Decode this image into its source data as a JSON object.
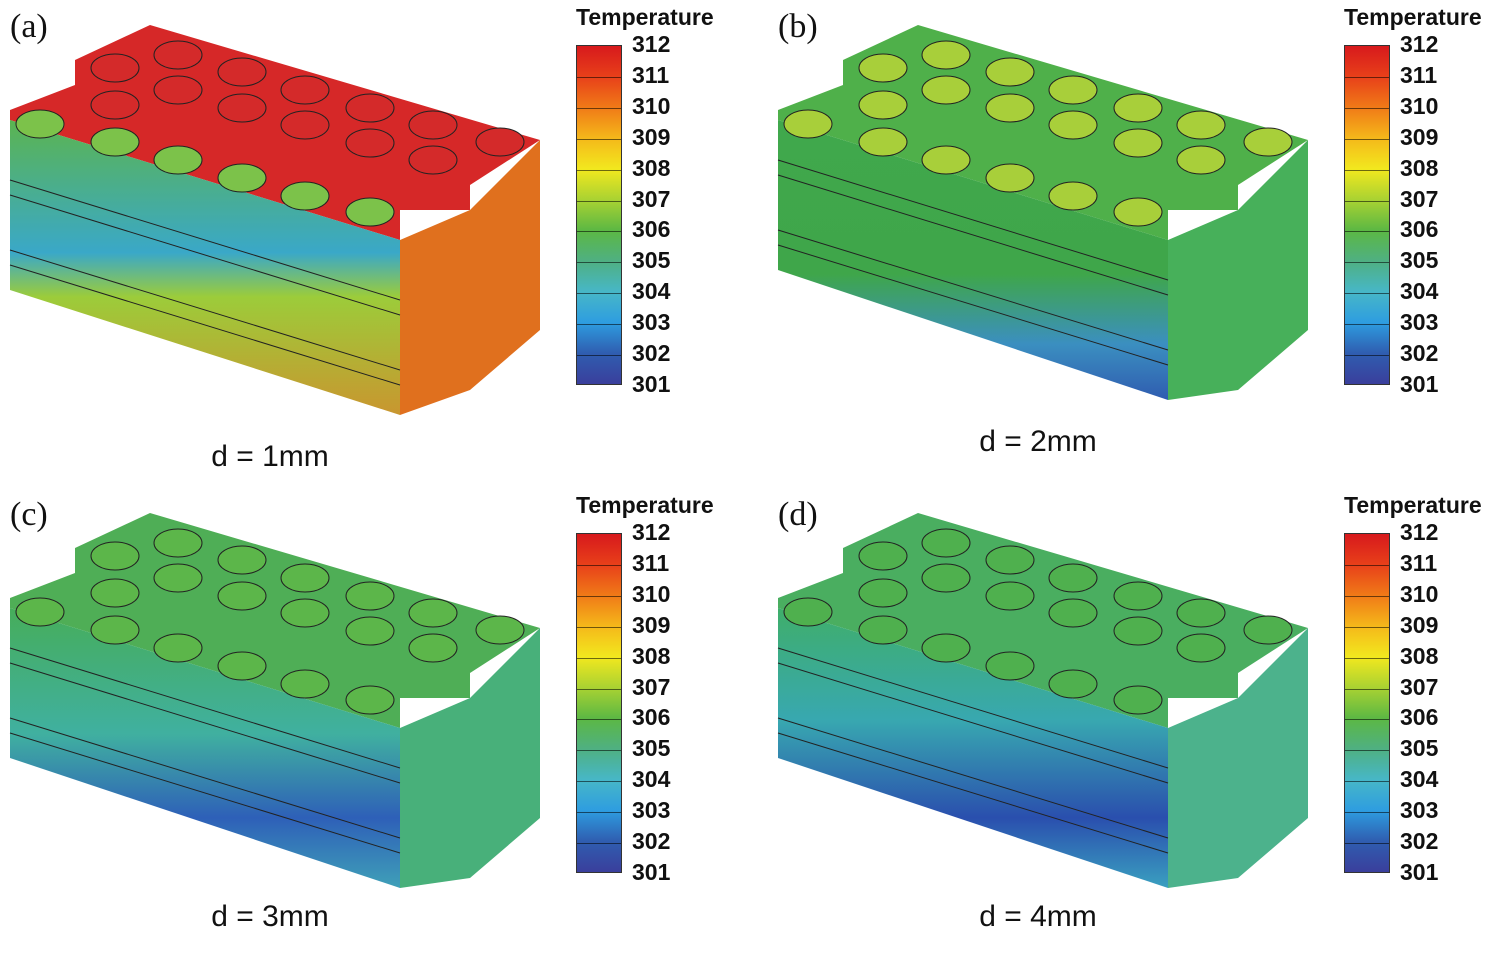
{
  "legend_title": "Temperature",
  "colorbar_ticks": [
    "312",
    "311",
    "310",
    "309",
    "308",
    "307",
    "306",
    "305",
    "304",
    "303",
    "302",
    "301"
  ],
  "colormap": [
    "#d7191c",
    "#e8401a",
    "#f07a17",
    "#f5b81a",
    "#f2e81e",
    "#a9d232",
    "#5cb843",
    "#4fb082",
    "#47b7c7",
    "#2e9de0",
    "#2f5db0",
    "#3a3f9c"
  ],
  "panels": [
    {
      "label": "(a)",
      "caption": "d = 1mm",
      "top_color": "#d62828",
      "front_top": "#5bb450",
      "front_mid": "#3aa8c8",
      "front_bottom": "#c9962f",
      "side_color": "#e0701e",
      "circle_fill": "#d42a2a",
      "hot": true
    },
    {
      "label": "(b)",
      "caption": "d = 2mm",
      "top_color": "#4fb04a",
      "front_top": "#3fa64a",
      "front_mid": "#3fa64a",
      "front_bottom": "#2f75b8",
      "side_color": "#47b05a",
      "circle_fill": "#a8cf3a",
      "hot": false
    },
    {
      "label": "(c)",
      "caption": "d = 3mm",
      "top_color": "#4fae56",
      "front_top": "#46ad5a",
      "front_mid": "#40b0a0",
      "front_bottom": "#2e60b8",
      "side_color": "#48b07a",
      "circle_fill": "#5cb64a",
      "hot": false
    },
    {
      "label": "(d)",
      "caption": "d = 4mm",
      "top_color": "#4aae60",
      "front_top": "#3fae6a",
      "front_mid": "#38a8b0",
      "front_bottom": "#2a4fae",
      "side_color": "#4cb28c",
      "circle_fill": "#4fb04e",
      "hot": false
    }
  ]
}
